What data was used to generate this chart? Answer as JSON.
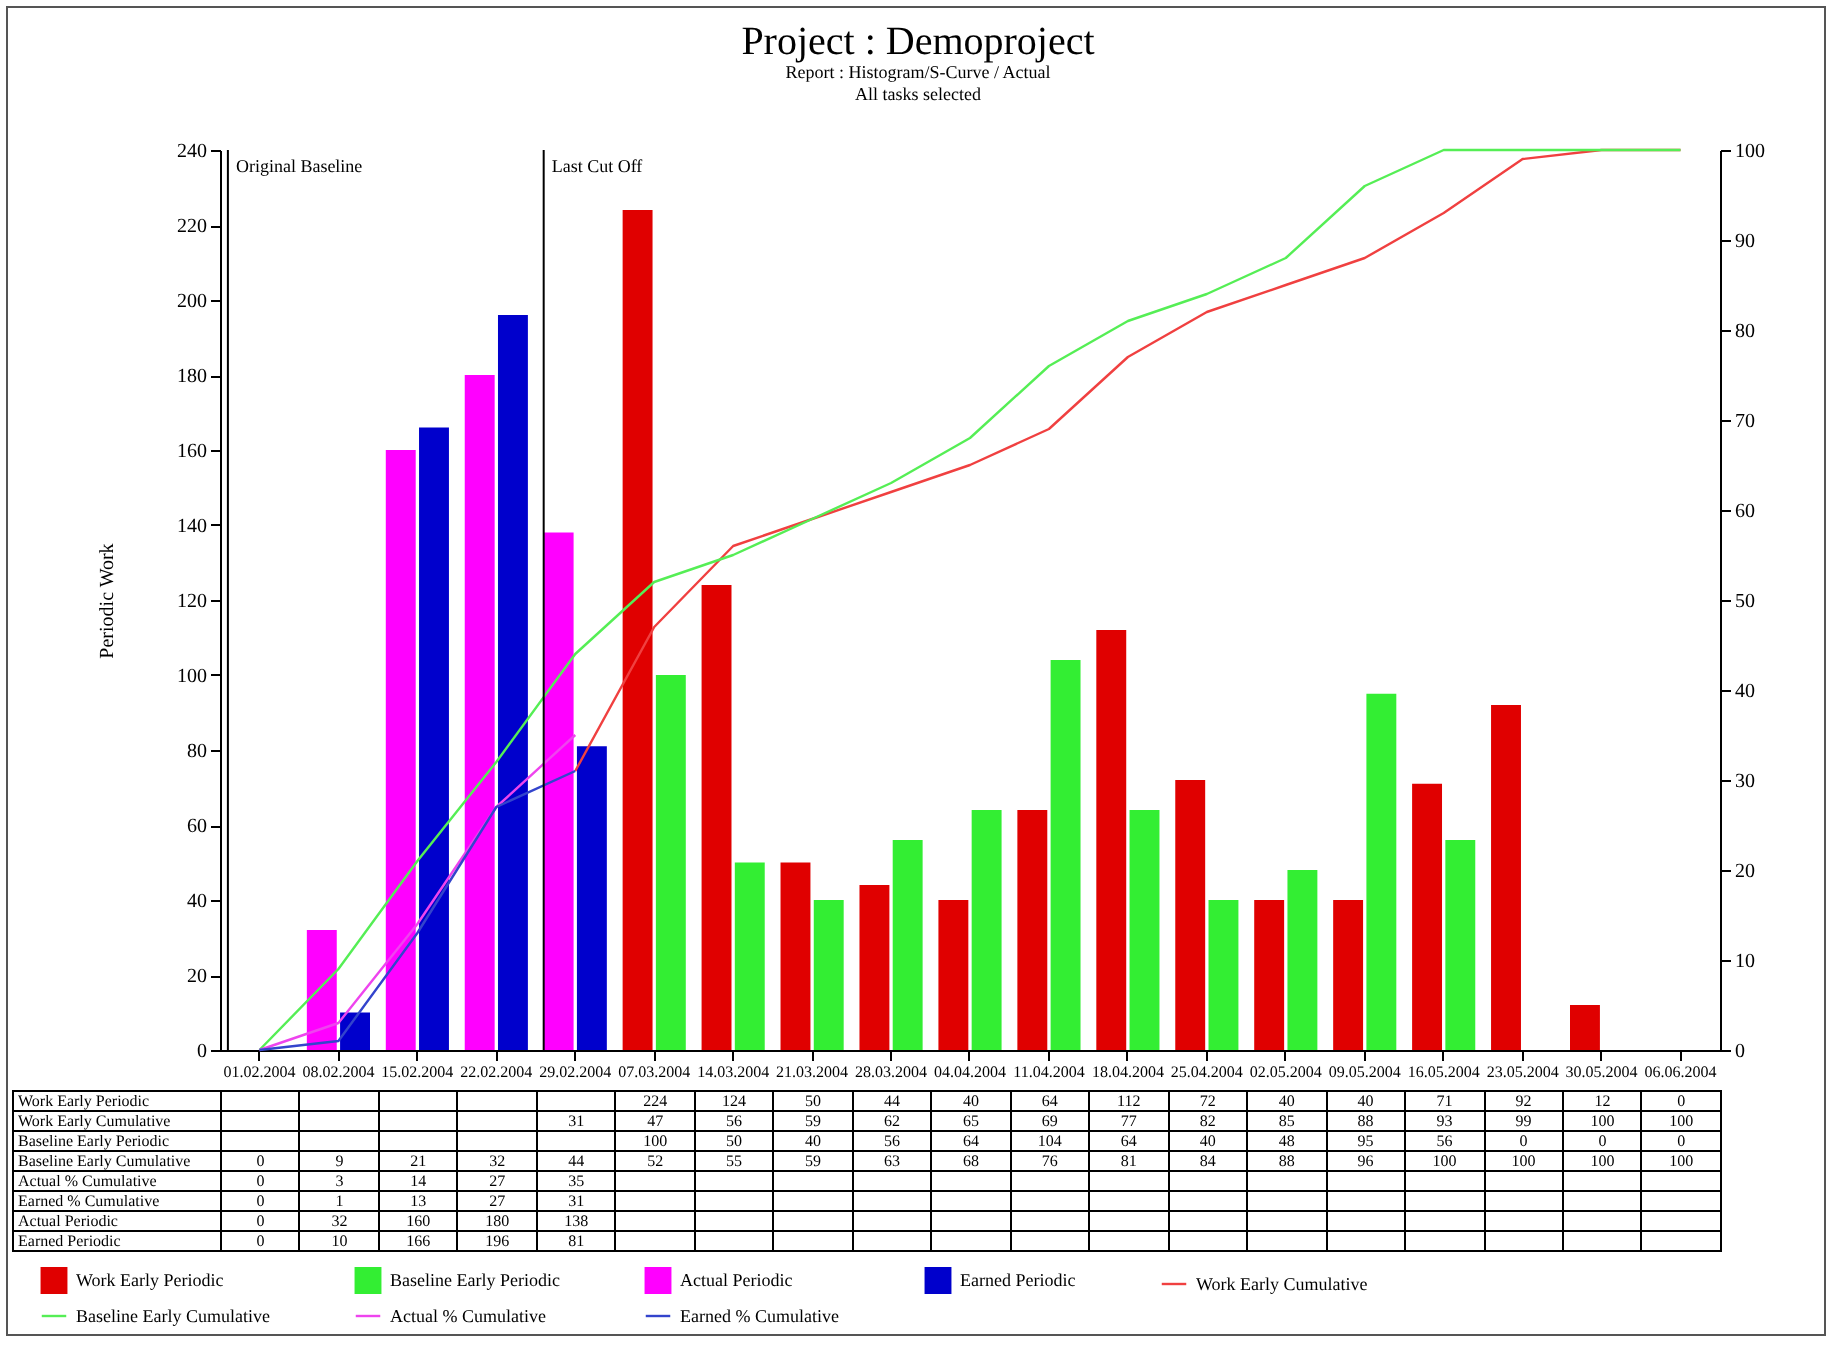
{
  "chart_data": {
    "type": "bar",
    "title": "Project : Demoproject",
    "subtitle": "Report : Histogram/S-Curve / Actual",
    "annotations": [
      "All tasks selected"
    ],
    "ylabel": "Periodic Work",
    "categories": [
      "01.02.2004",
      "08.02.2004",
      "15.02.2004",
      "22.02.2004",
      "29.02.2004",
      "07.03.2004",
      "14.03.2004",
      "21.03.2004",
      "28.03.2004",
      "04.04.2004",
      "11.04.2004",
      "18.04.2004",
      "25.04.2004",
      "02.05.2004",
      "09.05.2004",
      "16.05.2004",
      "23.05.2004",
      "30.05.2004",
      "06.06.2004"
    ],
    "series": [
      {
        "name": "Work Early Periodic",
        "color": "#e00000",
        "values": [
          null,
          null,
          null,
          null,
          null,
          224,
          124,
          50,
          44,
          40,
          64,
          112,
          72,
          40,
          40,
          71,
          92,
          12,
          0
        ]
      },
      {
        "name": "Work Early Cumulative",
        "type": "line",
        "axis": "y2",
        "color": "#f04040",
        "values": [
          null,
          null,
          null,
          null,
          31,
          47,
          56,
          59,
          62,
          65,
          69,
          77,
          82,
          85,
          88,
          93,
          99,
          100,
          100
        ]
      },
      {
        "name": "Baseline Early Periodic",
        "color": "#33ee33",
        "values": [
          null,
          null,
          null,
          null,
          null,
          100,
          50,
          40,
          56,
          64,
          104,
          64,
          40,
          48,
          95,
          56,
          0,
          0,
          0
        ]
      },
      {
        "name": "Baseline Early Cumulative",
        "type": "line",
        "axis": "y2",
        "color": "#55ee55",
        "values": [
          0,
          9,
          21,
          32,
          44,
          52,
          55,
          59,
          63,
          68,
          76,
          81,
          84,
          88,
          96,
          100,
          100,
          100,
          100
        ]
      },
      {
        "name": "Actual % Cumulative",
        "type": "line",
        "axis": "y2",
        "color": "#ee44ee",
        "values": [
          0,
          3,
          14,
          27,
          35,
          null,
          null,
          null,
          null,
          null,
          null,
          null,
          null,
          null,
          null,
          null,
          null,
          null,
          null
        ]
      },
      {
        "name": "Earned % Cumulative",
        "type": "line",
        "axis": "y2",
        "color": "#3344cc",
        "values": [
          0,
          1,
          13,
          27,
          31,
          null,
          null,
          null,
          null,
          null,
          null,
          null,
          null,
          null,
          null,
          null,
          null,
          null,
          null
        ]
      },
      {
        "name": "Actual Periodic",
        "color": "#ff00ff",
        "values": [
          0,
          32,
          160,
          180,
          138,
          null,
          null,
          null,
          null,
          null,
          null,
          null,
          null,
          null,
          null,
          null,
          null,
          null,
          null
        ]
      },
      {
        "name": "Earned Periodic",
        "color": "#0000cc",
        "values": [
          0,
          10,
          166,
          196,
          81,
          null,
          null,
          null,
          null,
          null,
          null,
          null,
          null,
          null,
          null,
          null,
          null,
          null,
          null
        ]
      }
    ],
    "ylim": [
      0,
      240
    ],
    "yticks": [
      0,
      20,
      40,
      60,
      80,
      100,
      120,
      140,
      160,
      180,
      200,
      220,
      240
    ],
    "y2lim": [
      0,
      100
    ],
    "y2ticks": [
      0,
      10,
      20,
      30,
      40,
      50,
      60,
      70,
      80,
      90,
      100
    ],
    "ref_lines": [
      {
        "axis": "x",
        "value": "01.02.2004",
        "label": "Original Baseline"
      },
      {
        "axis": "x",
        "value": "29.02.2004",
        "label": "Last Cut Off"
      }
    ],
    "data_labels": true,
    "legend": "bottom",
    "grid": false
  }
}
